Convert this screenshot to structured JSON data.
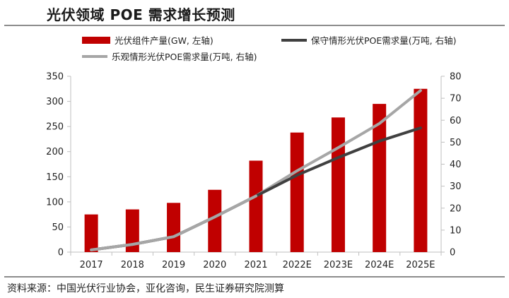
{
  "title": "光伏领域 POE 需求增长预测",
  "source": "资料来源：中国光伏行业协会，亚化咨询，民生证券研究院测算",
  "colors": {
    "bars": "#c00000",
    "conservative": "#404040",
    "optimistic": "#a6a6a6",
    "axis": "#bfbfbf"
  },
  "chart_data": {
    "type": "bar",
    "categories": [
      "2017",
      "2018",
      "2019",
      "2020",
      "2021",
      "2022E",
      "2023E",
      "2024E",
      "2025E"
    ],
    "left_axis": {
      "ylim": [
        0,
        350
      ],
      "ticks": [
        "0",
        "50",
        "100",
        "150",
        "200",
        "250",
        "300",
        "350"
      ]
    },
    "right_axis": {
      "ylim": [
        0,
        80
      ],
      "ticks": [
        "0",
        "10",
        "20",
        "30",
        "40",
        "50",
        "60",
        "70",
        "80"
      ]
    },
    "series": [
      {
        "name": "光伏组件产量(GW, 左轴)",
        "type": "bar",
        "axis": "left",
        "values": [
          75,
          85,
          98,
          124,
          182,
          238,
          268,
          295,
          325
        ]
      },
      {
        "name": "保守情形光伏POE需求量(万吨, 右轴)",
        "type": "line",
        "axis": "right",
        "values": [
          1,
          3.5,
          7,
          16,
          25.5,
          35,
          43,
          50.5,
          56.5
        ]
      },
      {
        "name": "乐观情形光伏POE需求量(万吨, 右轴)",
        "type": "line",
        "axis": "right",
        "values": [
          1,
          3.5,
          7,
          16,
          25.5,
          37,
          47.5,
          58.5,
          73.5
        ]
      }
    ],
    "legend": "top",
    "grid": false
  }
}
